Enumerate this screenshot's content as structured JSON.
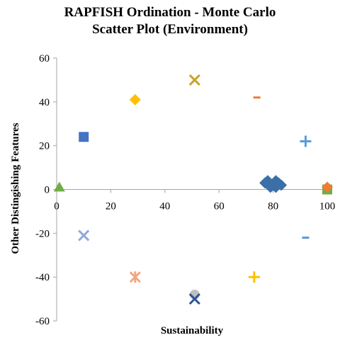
{
  "chart_data": {
    "type": "scatter",
    "title": "RAPFISH Ordination - Monte Carlo Scatter Plot (Environment)",
    "title_lines": [
      "RAPFISH Ordination - Monte Carlo",
      "Scatter Plot (Environment)"
    ],
    "xlabel": "Sustainability",
    "ylabel": "Other Distingishing Features",
    "xlim": [
      0,
      100
    ],
    "ylim": [
      -60,
      60
    ],
    "xticks": [
      0,
      20,
      40,
      60,
      80,
      100
    ],
    "yticks": [
      -60,
      -40,
      -20,
      0,
      20,
      40,
      60
    ],
    "grid": false,
    "legend": "none",
    "points": [
      {
        "x": 10,
        "y": 24,
        "marker": "square",
        "color": "#4472C4"
      },
      {
        "x": 29,
        "y": 41,
        "marker": "diamond",
        "color": "#FFC000"
      },
      {
        "x": 51,
        "y": 50,
        "marker": "x",
        "color": "#C9A227"
      },
      {
        "x": 74,
        "y": 42,
        "marker": "dash",
        "color": "#ED7D31"
      },
      {
        "x": 92,
        "y": 22,
        "marker": "plus",
        "color": "#5B9BD5"
      },
      {
        "x": 1,
        "y": 1,
        "marker": "triangle",
        "color": "#70AD47"
      },
      {
        "x": 100,
        "y": 0,
        "marker": "square",
        "color": "#70AD47"
      },
      {
        "x": 100,
        "y": 1,
        "marker": "diamond",
        "color": "#ED7D31"
      },
      {
        "x": 10,
        "y": -21,
        "marker": "x",
        "color": "#8FAADC"
      },
      {
        "x": 92,
        "y": -22,
        "marker": "dash",
        "color": "#5B9BD5"
      },
      {
        "x": 29,
        "y": -40,
        "marker": "star",
        "color": "#F4A582"
      },
      {
        "x": 73,
        "y": -40,
        "marker": "plus",
        "color": "#FFC000"
      },
      {
        "x": 51,
        "y": -48,
        "marker": "circle",
        "color": "#BFBFBF"
      },
      {
        "x": 51,
        "y": -50,
        "marker": "x",
        "color": "#2F5597"
      },
      {
        "x": 78,
        "y": 4,
        "marker": "diamond",
        "color": "#3B6FA8"
      },
      {
        "x": 80,
        "y": 2,
        "marker": "diamond",
        "color": "#3B6FA8"
      },
      {
        "x": 81,
        "y": 1,
        "marker": "diamond",
        "color": "#3B6FA8"
      },
      {
        "x": 82,
        "y": 3,
        "marker": "diamond",
        "color": "#3B6FA8"
      },
      {
        "x": 79,
        "y": 1,
        "marker": "diamond",
        "color": "#3B6FA8"
      },
      {
        "x": 83,
        "y": 2,
        "marker": "diamond",
        "color": "#3B6FA8"
      },
      {
        "x": 77,
        "y": 3,
        "marker": "diamond",
        "color": "#3B6FA8"
      },
      {
        "x": 81,
        "y": 4,
        "marker": "diamond",
        "color": "#3B6FA8"
      }
    ]
  }
}
